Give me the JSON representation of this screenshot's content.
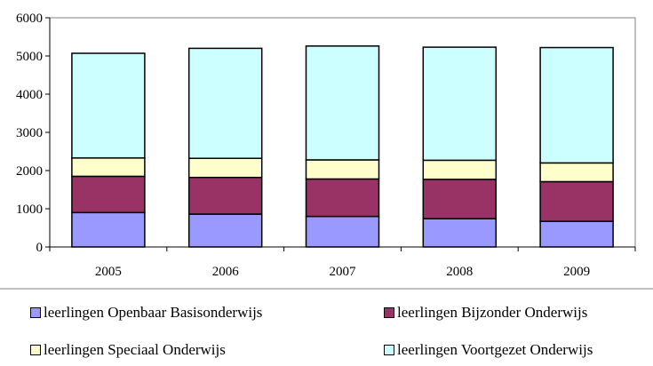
{
  "chart_data": {
    "type": "bar",
    "stacked": true,
    "categories": [
      "2005",
      "2006",
      "2007",
      "2008",
      "2009"
    ],
    "series": [
      {
        "name": "leerlingen Openbaar Basisonderwijs",
        "color": "#9999ff",
        "values": [
          900,
          860,
          800,
          740,
          670
        ]
      },
      {
        "name": "leerlingen Bijzonder Onderwijs",
        "color": "#993366",
        "values": [
          950,
          960,
          980,
          1030,
          1040
        ]
      },
      {
        "name": "leerlingen Speciaal Onderwijs",
        "color": "#ffffcc",
        "values": [
          480,
          500,
          500,
          500,
          490
        ]
      },
      {
        "name": "leerlingen Voortgezet Onderwijs",
        "color": "#ccffff",
        "values": [
          2740,
          2880,
          2980,
          2960,
          3020
        ]
      }
    ],
    "ylim": [
      0,
      6000
    ],
    "yticks": [
      "0",
      "1000",
      "2000",
      "3000",
      "4000",
      "5000",
      "6000"
    ],
    "grid": false,
    "legend_position": "bottom",
    "title": "",
    "xlabel": "",
    "ylabel": ""
  }
}
